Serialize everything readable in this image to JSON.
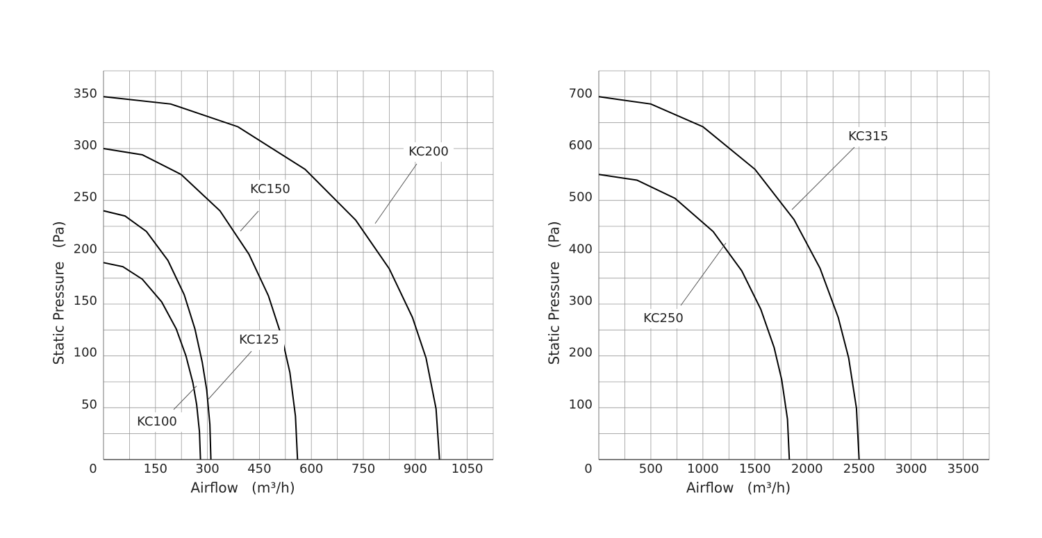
{
  "chart_data": [
    {
      "type": "line",
      "x_label": "Airflow   (m³/h)",
      "y_label": "Static Pressure   (Pa)",
      "xlim": [
        0,
        1125
      ],
      "ylim": [
        0,
        375
      ],
      "xticks": [
        0,
        150,
        300,
        450,
        600,
        750,
        900,
        1050
      ],
      "yticks": [
        50,
        100,
        150,
        200,
        250,
        300,
        350
      ],
      "xgrid": [
        75,
        150,
        225,
        300,
        375,
        450,
        525,
        600,
        675,
        750,
        825,
        900,
        975,
        1050,
        1125
      ],
      "ygrid": [
        25,
        50,
        75,
        100,
        125,
        150,
        175,
        200,
        225,
        250,
        275,
        300,
        325,
        350,
        375
      ],
      "grid": true,
      "series": [
        {
          "name": "KC100",
          "color": "#000000",
          "x": [
            0,
            56,
            112,
            168,
            210,
            238,
            258,
            269,
            277,
            280
          ],
          "values": [
            190,
            186,
            174,
            152,
            126,
            100,
            74,
            53,
            27,
            0
          ]
        },
        {
          "name": "KC125",
          "color": "#000000",
          "x": [
            0,
            62,
            124,
            186,
            233,
            264,
            285,
            298,
            307,
            310
          ],
          "values": [
            240,
            235,
            220,
            192,
            159,
            126,
            94,
            67,
            34,
            0
          ]
        },
        {
          "name": "KC150",
          "color": "#000000",
          "x": [
            0,
            112,
            224,
            336,
            420,
            476,
            515,
            538,
            554,
            560
          ],
          "values": [
            300,
            294,
            275,
            240,
            198,
            158,
            118,
            84,
            42,
            0
          ]
        },
        {
          "name": "KC200",
          "color": "#000000",
          "x": [
            0,
            194,
            388,
            582,
            728,
            825,
            892,
            931,
            960,
            970
          ],
          "values": [
            350,
            343,
            321,
            280,
            231,
            184,
            137,
            98,
            49,
            0
          ]
        }
      ]
    },
    {
      "type": "line",
      "x_label": "Airflow   (m³/h)",
      "y_label": "Static Pressure   (Pa)",
      "xlim": [
        0,
        3750
      ],
      "ylim": [
        0,
        750
      ],
      "xticks": [
        0,
        500,
        1000,
        1500,
        2000,
        2500,
        3000,
        3500
      ],
      "yticks": [
        100,
        200,
        300,
        400,
        500,
        600,
        700
      ],
      "xgrid": [
        250,
        500,
        750,
        1000,
        1250,
        1500,
        1750,
        2000,
        2250,
        2500,
        2750,
        3000,
        3250,
        3500,
        3750
      ],
      "ygrid": [
        50,
        100,
        150,
        200,
        250,
        300,
        350,
        400,
        450,
        500,
        550,
        600,
        650,
        700,
        750
      ],
      "grid": true,
      "series": [
        {
          "name": "KC250",
          "color": "#000000",
          "x": [
            0,
            366,
            732,
            1098,
            1373,
            1556,
            1684,
            1757,
            1812,
            1830
          ],
          "values": [
            550,
            539,
            504,
            440,
            364,
            290,
            216,
            154,
            78,
            0
          ]
        },
        {
          "name": "KC315",
          "color": "#000000",
          "x": [
            0,
            500,
            1000,
            1500,
            1875,
            2125,
            2300,
            2400,
            2475,
            2500
          ],
          "values": [
            700,
            686,
            642,
            560,
            463,
            369,
            274,
            196,
            99,
            0
          ]
        }
      ]
    }
  ]
}
